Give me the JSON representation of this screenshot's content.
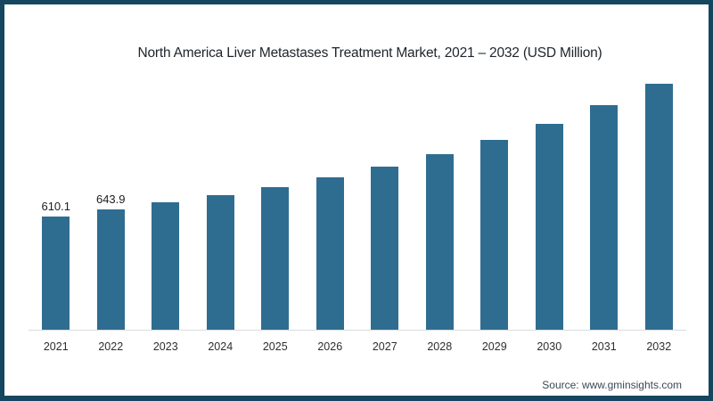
{
  "page": {
    "background": "#ffffff",
    "border_color": "#15465f"
  },
  "source": {
    "text": "Source: www.gminsights.com"
  },
  "chart_data": {
    "type": "bar",
    "title": "North America Liver Metastases Treatment Market, 2021 – 2032 (USD Million)",
    "unit": "USD Million",
    "categories": [
      "2021",
      "2022",
      "2023",
      "2024",
      "2025",
      "2026",
      "2027",
      "2028",
      "2029",
      "2030",
      "2031",
      "2032"
    ],
    "values": [
      610.1,
      643.9,
      683,
      722,
      766,
      817,
      875,
      943,
      1021,
      1108,
      1206,
      1321
    ],
    "value_labels_shown": [
      "610.1",
      "643.9",
      "",
      "",
      "",
      "",
      "",
      "",
      "",
      "",
      "",
      ""
    ],
    "bar_color": "#2f6d90",
    "axis_line_color": "#d9dde0",
    "ylim": [
      0,
      1400
    ],
    "grid": false,
    "legend": false,
    "xlabel": "",
    "ylabel": ""
  }
}
